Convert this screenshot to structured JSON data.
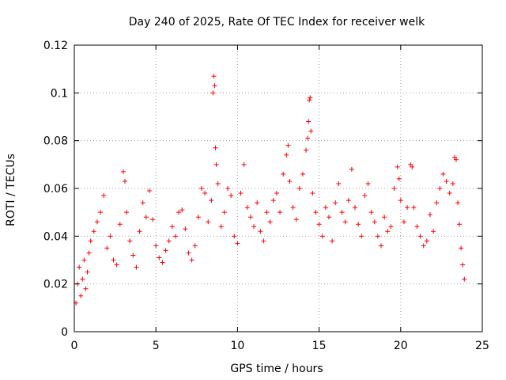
{
  "chart_data": {
    "type": "scatter",
    "title": "Day 240 of 2025, Rate Of TEC Index for receiver welk",
    "xlabel": "GPS time / hours",
    "ylabel": "ROTI / TECUs",
    "xlim": [
      0,
      25
    ],
    "ylim": [
      0,
      0.12
    ],
    "xticks": [
      0,
      5,
      10,
      15,
      20,
      25
    ],
    "yticks": [
      0,
      0.02,
      0.04,
      0.06,
      0.08,
      0.1,
      0.12
    ],
    "xtick_labels": [
      "0",
      "5",
      "10",
      "15",
      "20",
      "25"
    ],
    "ytick_labels": [
      "0",
      "0.02",
      "0.04",
      "0.06",
      "0.08",
      "0.1",
      "0.12"
    ],
    "grid": true,
    "marker": "+",
    "color": "#ff0000",
    "series": [
      {
        "points": [
          [
            0.1,
            0.012
          ],
          [
            0.2,
            0.02
          ],
          [
            0.3,
            0.027
          ],
          [
            0.4,
            0.015
          ],
          [
            0.5,
            0.022
          ],
          [
            0.6,
            0.03
          ],
          [
            0.7,
            0.018
          ],
          [
            0.8,
            0.025
          ],
          [
            0.9,
            0.033
          ],
          [
            1.0,
            0.038
          ],
          [
            1.2,
            0.042
          ],
          [
            1.4,
            0.046
          ],
          [
            1.6,
            0.05
          ],
          [
            1.8,
            0.057
          ],
          [
            2.0,
            0.035
          ],
          [
            2.2,
            0.04
          ],
          [
            2.4,
            0.03
          ],
          [
            2.6,
            0.028
          ],
          [
            2.8,
            0.045
          ],
          [
            3.0,
            0.067
          ],
          [
            3.1,
            0.063
          ],
          [
            3.2,
            0.05
          ],
          [
            3.4,
            0.038
          ],
          [
            3.6,
            0.032
          ],
          [
            3.8,
            0.027
          ],
          [
            4.0,
            0.042
          ],
          [
            4.2,
            0.054
          ],
          [
            4.4,
            0.048
          ],
          [
            4.6,
            0.059
          ],
          [
            4.8,
            0.047
          ],
          [
            5.0,
            0.036
          ],
          [
            5.2,
            0.031
          ],
          [
            5.4,
            0.029
          ],
          [
            5.6,
            0.034
          ],
          [
            5.8,
            0.038
          ],
          [
            6.0,
            0.044
          ],
          [
            6.2,
            0.04
          ],
          [
            6.4,
            0.05
          ],
          [
            6.6,
            0.051
          ],
          [
            6.8,
            0.043
          ],
          [
            7.0,
            0.033
          ],
          [
            7.2,
            0.03
          ],
          [
            7.4,
            0.036
          ],
          [
            7.6,
            0.048
          ],
          [
            7.8,
            0.06
          ],
          [
            8.0,
            0.058
          ],
          [
            8.2,
            0.046
          ],
          [
            8.4,
            0.055
          ],
          [
            8.5,
            0.1
          ],
          [
            8.55,
            0.107
          ],
          [
            8.6,
            0.103
          ],
          [
            8.65,
            0.077
          ],
          [
            8.7,
            0.07
          ],
          [
            8.8,
            0.062
          ],
          [
            9.0,
            0.044
          ],
          [
            9.2,
            0.05
          ],
          [
            9.4,
            0.06
          ],
          [
            9.6,
            0.057
          ],
          [
            9.8,
            0.04
          ],
          [
            10.0,
            0.037
          ],
          [
            10.2,
            0.058
          ],
          [
            10.4,
            0.07
          ],
          [
            10.6,
            0.052
          ],
          [
            10.8,
            0.048
          ],
          [
            11.0,
            0.044
          ],
          [
            11.2,
            0.054
          ],
          [
            11.4,
            0.042
          ],
          [
            11.6,
            0.038
          ],
          [
            11.8,
            0.05
          ],
          [
            12.0,
            0.046
          ],
          [
            12.2,
            0.055
          ],
          [
            12.4,
            0.058
          ],
          [
            12.6,
            0.05
          ],
          [
            12.8,
            0.066
          ],
          [
            13.0,
            0.074
          ],
          [
            13.1,
            0.078
          ],
          [
            13.2,
            0.063
          ],
          [
            13.4,
            0.052
          ],
          [
            13.6,
            0.047
          ],
          [
            13.8,
            0.06
          ],
          [
            14.0,
            0.066
          ],
          [
            14.2,
            0.076
          ],
          [
            14.3,
            0.081
          ],
          [
            14.35,
            0.088
          ],
          [
            14.4,
            0.097
          ],
          [
            14.45,
            0.098
          ],
          [
            14.5,
            0.084
          ],
          [
            14.6,
            0.058
          ],
          [
            14.8,
            0.05
          ],
          [
            15.0,
            0.045
          ],
          [
            15.2,
            0.04
          ],
          [
            15.4,
            0.052
          ],
          [
            15.6,
            0.048
          ],
          [
            15.8,
            0.038
          ],
          [
            16.0,
            0.054
          ],
          [
            16.2,
            0.062
          ],
          [
            16.4,
            0.05
          ],
          [
            16.6,
            0.046
          ],
          [
            16.8,
            0.055
          ],
          [
            17.0,
            0.068
          ],
          [
            17.2,
            0.052
          ],
          [
            17.4,
            0.045
          ],
          [
            17.6,
            0.04
          ],
          [
            17.8,
            0.057
          ],
          [
            18.0,
            0.062
          ],
          [
            18.2,
            0.05
          ],
          [
            18.4,
            0.046
          ],
          [
            18.6,
            0.04
          ],
          [
            18.8,
            0.036
          ],
          [
            19.0,
            0.048
          ],
          [
            19.2,
            0.042
          ],
          [
            19.4,
            0.044
          ],
          [
            19.6,
            0.06
          ],
          [
            19.8,
            0.069
          ],
          [
            19.9,
            0.064
          ],
          [
            20.0,
            0.055
          ],
          [
            20.2,
            0.046
          ],
          [
            20.4,
            0.052
          ],
          [
            20.6,
            0.07
          ],
          [
            20.7,
            0.069
          ],
          [
            20.8,
            0.052
          ],
          [
            21.0,
            0.044
          ],
          [
            21.2,
            0.04
          ],
          [
            21.4,
            0.036
          ],
          [
            21.6,
            0.038
          ],
          [
            21.8,
            0.049
          ],
          [
            22.0,
            0.042
          ],
          [
            22.2,
            0.054
          ],
          [
            22.4,
            0.06
          ],
          [
            22.6,
            0.066
          ],
          [
            22.8,
            0.063
          ],
          [
            23.0,
            0.058
          ],
          [
            23.2,
            0.062
          ],
          [
            23.3,
            0.073
          ],
          [
            23.4,
            0.072
          ],
          [
            23.5,
            0.054
          ],
          [
            23.6,
            0.045
          ],
          [
            23.7,
            0.035
          ],
          [
            23.8,
            0.028
          ],
          [
            23.9,
            0.022
          ]
        ]
      }
    ]
  }
}
